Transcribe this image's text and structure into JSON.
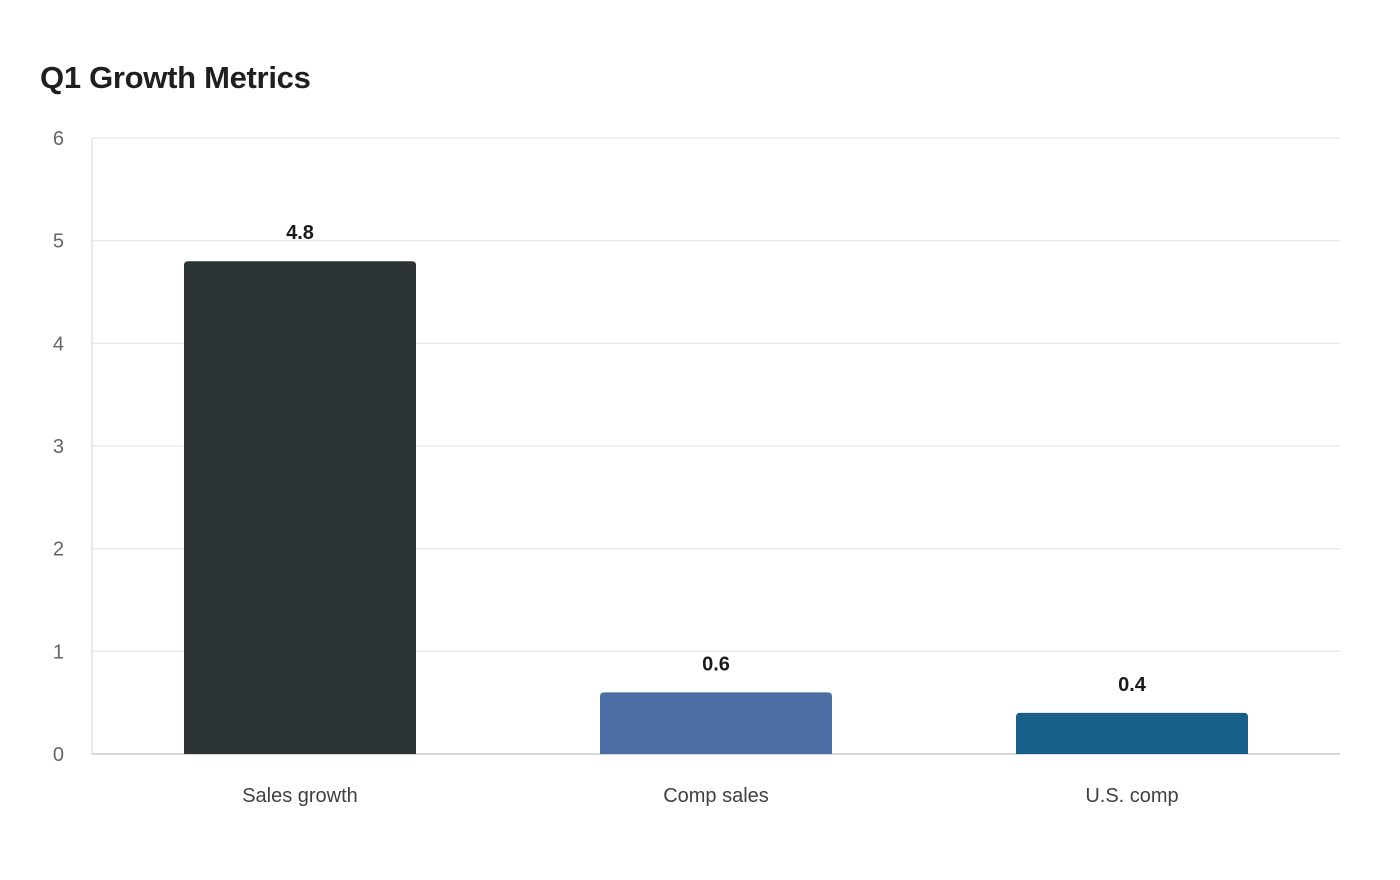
{
  "chart_data": {
    "type": "bar",
    "title": "Q1 Growth Metrics",
    "xlabel": "",
    "ylabel": "",
    "categories": [
      "Sales growth",
      "Comp sales",
      "U.S. comp"
    ],
    "values": [
      4.8,
      0.6,
      0.4
    ],
    "value_labels": [
      "4.8",
      "0.6",
      "0.4"
    ],
    "colors": [
      "#2d3436",
      "#4a6da3",
      "#176089"
    ],
    "ylim": [
      0,
      6
    ],
    "yticks": [
      0,
      1,
      2,
      3,
      4,
      5,
      6
    ],
    "grid": true,
    "legend": "none"
  }
}
